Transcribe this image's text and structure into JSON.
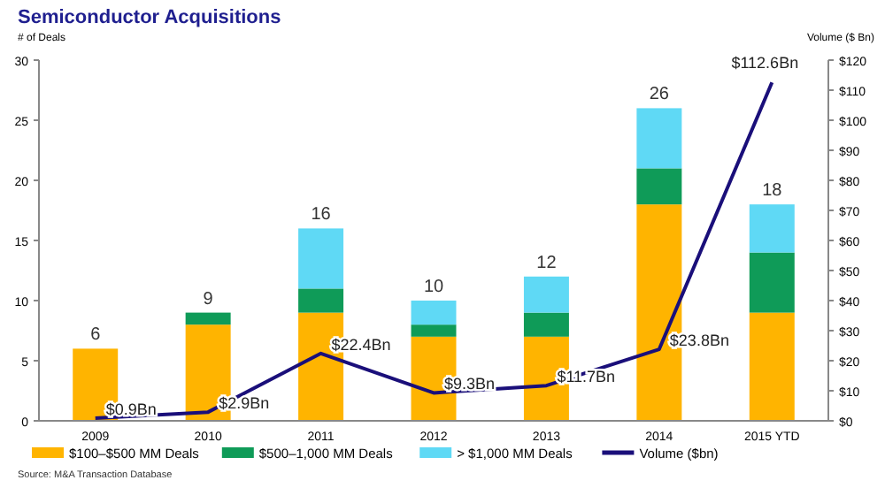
{
  "chart_data": {
    "type": "bar",
    "title": "Semiconductor Acquisitions",
    "ylabel": "# of Deals",
    "y2label": "Volume ($ Bn)",
    "stacked": true,
    "categories": [
      "2009",
      "2010",
      "2011",
      "2012",
      "2013",
      "2014",
      "2015 YTD"
    ],
    "series": [
      {
        "name": "$100–$500 MM Deals",
        "color": "#ffb400",
        "values": [
          6,
          8,
          9,
          7,
          7,
          18,
          9
        ]
      },
      {
        "name": "$500–1,000 MM Deals",
        "color": "#0f9b58",
        "values": [
          0,
          1,
          2,
          1,
          2,
          3,
          5
        ]
      },
      {
        "name": "> $1,000 MM Deals",
        "color": "#5fd9f5",
        "values": [
          0,
          0,
          5,
          2,
          3,
          5,
          4
        ]
      },
      {
        "name": "Volume ($bn)",
        "type": "line",
        "axis": "y2",
        "color": "#1a0f7a",
        "values": [
          0.9,
          2.9,
          22.4,
          9.3,
          11.7,
          23.8,
          112.6
        ],
        "value_labels": [
          "$0.9Bn",
          "$2.9Bn",
          "$22.4Bn",
          "$9.3Bn",
          "$11.7Bn",
          "$23.8Bn",
          "$112.6Bn"
        ]
      }
    ],
    "totals": [
      "6",
      "9",
      "16",
      "10",
      "12",
      "26",
      "18"
    ],
    "ylim": [
      0,
      30
    ],
    "yticks": [
      0,
      5,
      10,
      15,
      20,
      25,
      30
    ],
    "y2lim": [
      0,
      120
    ],
    "y2ticks": [
      {
        "value": 0,
        "label": "$0"
      },
      {
        "value": 10,
        "label": "$10"
      },
      {
        "value": 20,
        "label": "$20"
      },
      {
        "value": 30,
        "label": "$30"
      },
      {
        "value": 40,
        "label": "$40"
      },
      {
        "value": 50,
        "label": "$50"
      },
      {
        "value": 60,
        "label": "$60"
      },
      {
        "value": 70,
        "label": "$70"
      },
      {
        "value": 80,
        "label": "$80"
      },
      {
        "value": 90,
        "label": "$90"
      },
      {
        "value": 100,
        "label": "$100"
      },
      {
        "value": 110,
        "label": "$110"
      },
      {
        "value": 120,
        "label": "$120"
      }
    ],
    "grid": false,
    "legend": "bottom",
    "marker": "none",
    "annotations": [
      "Source: M&A Transaction Database"
    ]
  }
}
